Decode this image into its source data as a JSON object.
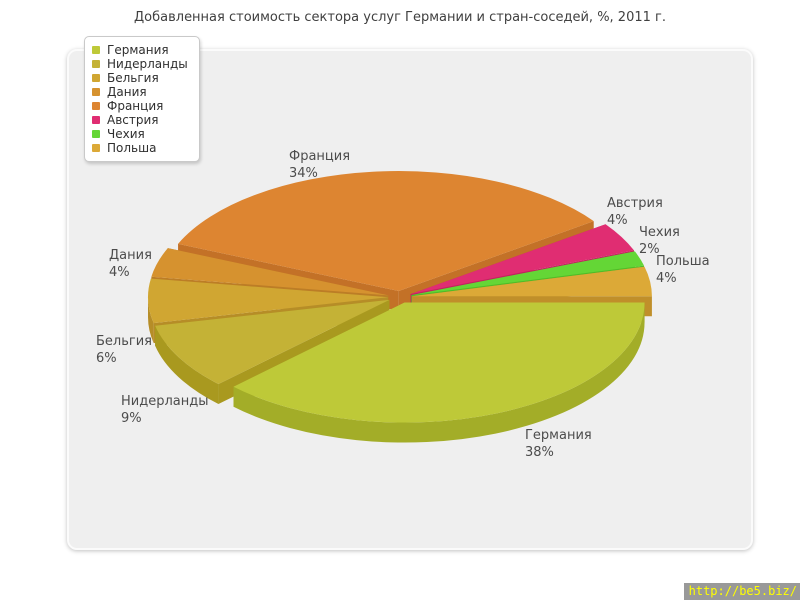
{
  "watermark": {
    "text": "http://be5.biz/"
  },
  "chart_data": {
    "type": "pie",
    "title": "Добавленная стоимость сектора услуг Германии и стран-соседей, %, 2011 г.",
    "unit": "%",
    "effect": "3d-exploded",
    "legend_position": "top-left",
    "start_angle_deg": 0,
    "direction": "clockwise",
    "slices": [
      {
        "label": "Германия",
        "value": 38,
        "color": "#bec938",
        "side_color": "#a3ad28"
      },
      {
        "label": "Нидерланды",
        "value": 9,
        "color": "#c4b236",
        "side_color": "#a9991f"
      },
      {
        "label": "Бельгия",
        "value": 6,
        "color": "#d0a632",
        "side_color": "#b68d27"
      },
      {
        "label": "Дания",
        "value": 4,
        "color": "#d6922f",
        "side_color": "#bc7d26"
      },
      {
        "label": "Франция",
        "value": 34,
        "color": "#dd8531",
        "side_color": "#c37127"
      },
      {
        "label": "Австрия",
        "value": 4,
        "color": "#e02d72",
        "side_color": "#c2235f"
      },
      {
        "label": "Чехия",
        "value": 2,
        "color": "#64d636",
        "side_color": "#4fbd28"
      },
      {
        "label": "Польша",
        "value": 4,
        "color": "#dca937",
        "side_color": "#c08f2a"
      }
    ]
  }
}
